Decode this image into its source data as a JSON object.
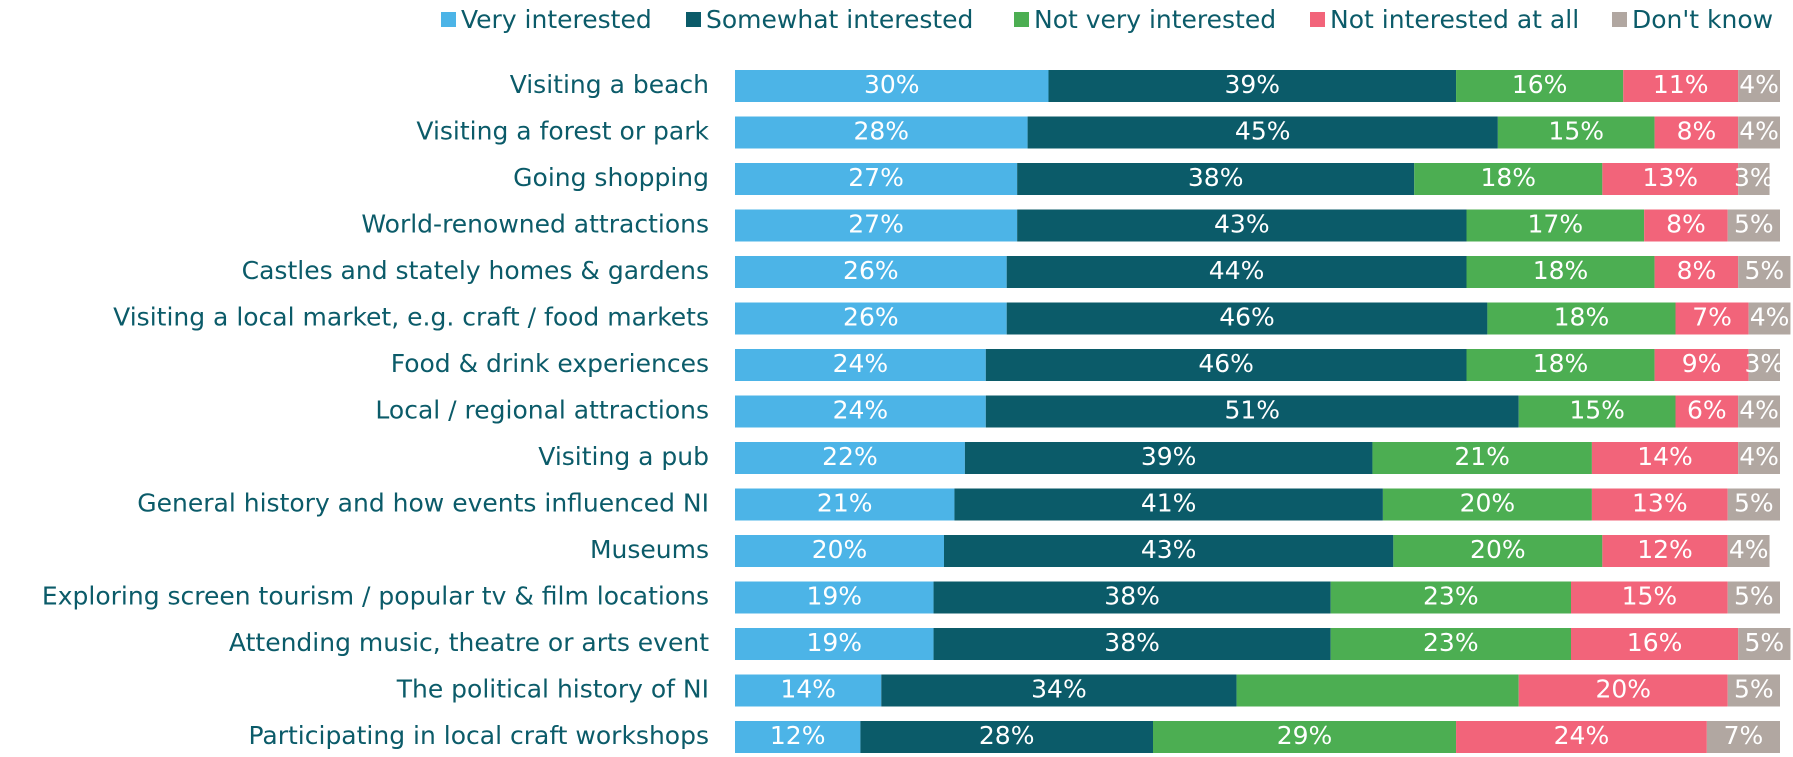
{
  "chart_data": {
    "type": "stacked-bar-horizontal",
    "categories": [
      "Visiting a beach",
      "Visiting a forest or park",
      "Going shopping",
      "World-renowned attractions",
      "Castles and stately homes & gardens",
      "Visiting a local market, e.g. craft / food markets",
      "Food & drink experiences",
      "Local / regional attractions",
      "Visiting a pub",
      "General history and how events influenced NI",
      "Museums",
      "Exploring screen tourism / popular tv & film locations",
      "Attending music, theatre or arts event",
      "The political history of NI",
      "Participating in local craft workshops"
    ],
    "xlim": [
      0,
      100
    ],
    "legend": "top",
    "series": [
      {
        "name": "Very interested",
        "color": "#4cb4e7",
        "values": [
          30,
          28,
          27,
          27,
          26,
          26,
          24,
          24,
          22,
          21,
          20,
          19,
          19,
          14,
          12
        ],
        "value_labels": [
          "30%",
          "28%",
          "27%",
          "27%",
          "26%",
          "26%",
          "24%",
          "24%",
          "22%",
          "21%",
          "20%",
          "19%",
          "19%",
          "14%",
          "12%"
        ]
      },
      {
        "name": "Somewhat interested",
        "color": "#0b5b69",
        "values": [
          39,
          45,
          38,
          43,
          44,
          46,
          46,
          51,
          39,
          41,
          43,
          38,
          38,
          34,
          28
        ],
        "value_labels": [
          "39%",
          "45%",
          "38%",
          "43%",
          "44%",
          "46%",
          "46%",
          "51%",
          "39%",
          "41%",
          "43%",
          "38%",
          "38%",
          "34%",
          "28%"
        ]
      },
      {
        "name": "Not very interested",
        "color": "#4cae52",
        "values": [
          16,
          15,
          18,
          17,
          18,
          18,
          18,
          15,
          21,
          20,
          20,
          23,
          23,
          27,
          29
        ],
        "value_labels": [
          "16%",
          "15%",
          "18%",
          "17%",
          "18%",
          "18%",
          "18%",
          "15%",
          "21%",
          "20%",
          "20%",
          "23%",
          "23%",
          null,
          "29%"
        ]
      },
      {
        "name": "Not interested at all",
        "color": "#f2647a",
        "values": [
          11,
          8,
          13,
          8,
          8,
          7,
          9,
          6,
          14,
          13,
          12,
          15,
          16,
          20,
          24
        ],
        "value_labels": [
          "11%",
          "8%",
          "13%",
          "8%",
          "8%",
          "7%",
          "9%",
          "6%",
          "14%",
          "13%",
          "12%",
          "15%",
          "16%",
          "20%",
          "24%"
        ]
      },
      {
        "name": "Don't know",
        "color": "#b1a7a1",
        "values": [
          4,
          4,
          3,
          5,
          5,
          4,
          3,
          4,
          4,
          5,
          4,
          5,
          5,
          5,
          7
        ],
        "value_labels": [
          "4%",
          "4%",
          "3%",
          "5%",
          "5%",
          "4%",
          "3%",
          "4%",
          "4%",
          "5%",
          "4%",
          "5%",
          "5%",
          "5%",
          "7%"
        ]
      }
    ]
  }
}
